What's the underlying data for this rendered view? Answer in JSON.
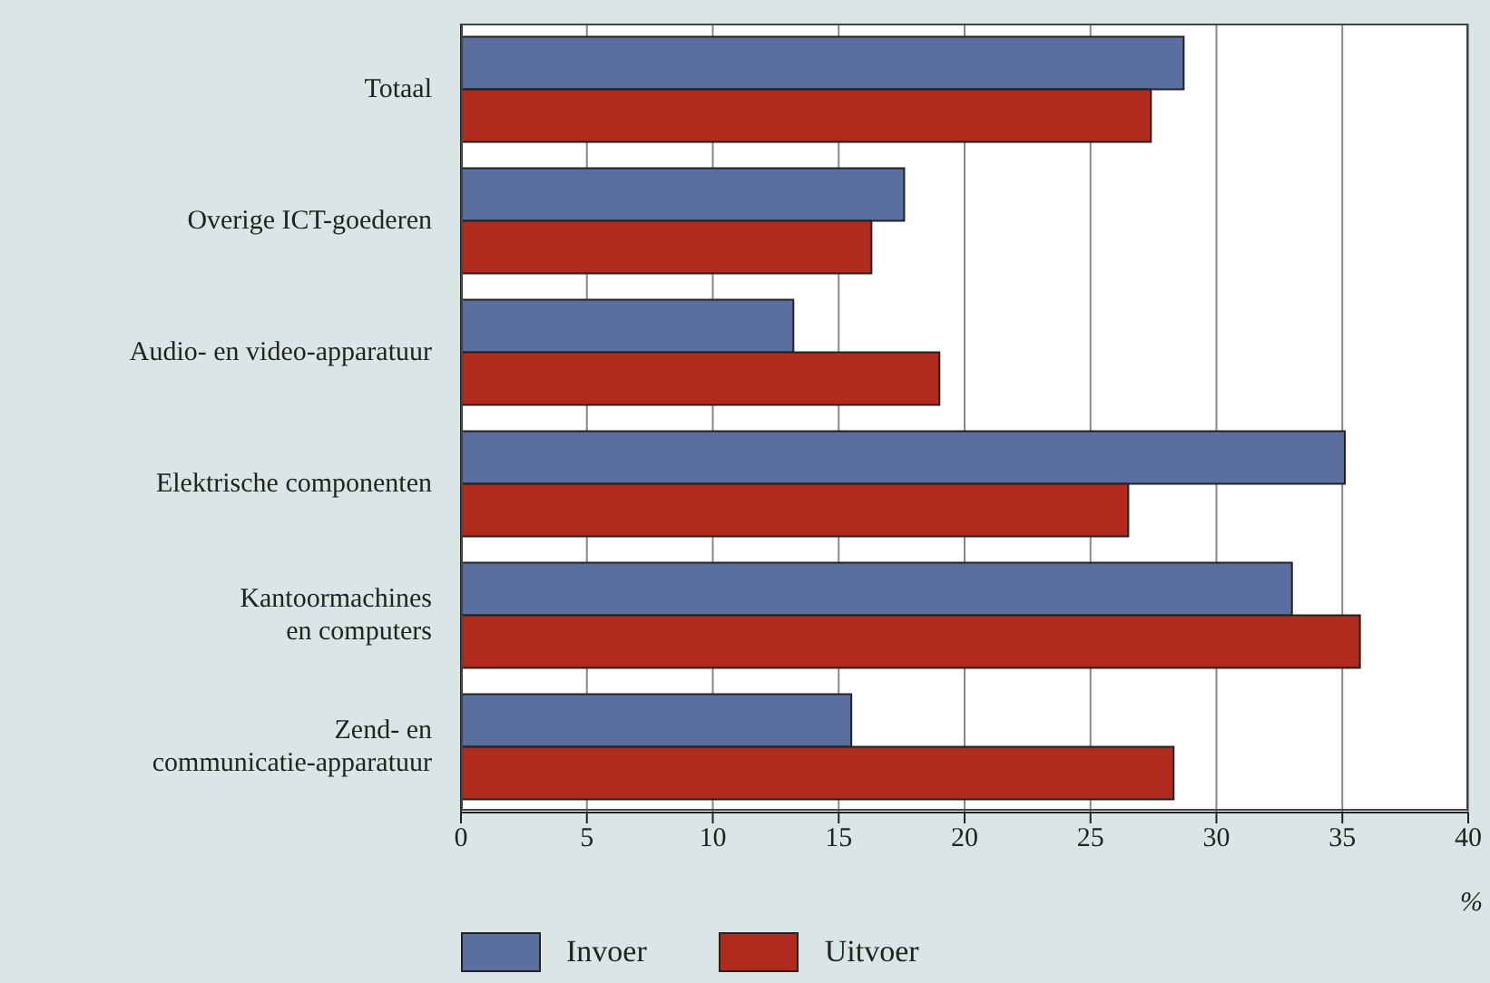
{
  "chart_data": {
    "type": "bar",
    "orientation": "horizontal",
    "categories": [
      "Totaal",
      "Overige ICT-goederen",
      "Audio- en video-apparatuur",
      "Elektrische componenten",
      "Kantoormachines\nen computers",
      "Zend- en\ncommunicatie-apparatuur"
    ],
    "series": [
      {
        "name": "Invoer",
        "color": "#5a6fa0",
        "values": [
          28.7,
          17.6,
          13.2,
          35.1,
          33.0,
          15.5
        ]
      },
      {
        "name": "Uitvoer",
        "color": "#b02a1e",
        "values": [
          27.4,
          16.3,
          19.0,
          26.5,
          35.7,
          28.3
        ]
      }
    ],
    "xlabel": "%",
    "xlim": [
      0,
      40
    ],
    "xticks": [
      0,
      5,
      10,
      15,
      20,
      25,
      30,
      35,
      40
    ],
    "grid": "x",
    "legend": "bottom left"
  }
}
